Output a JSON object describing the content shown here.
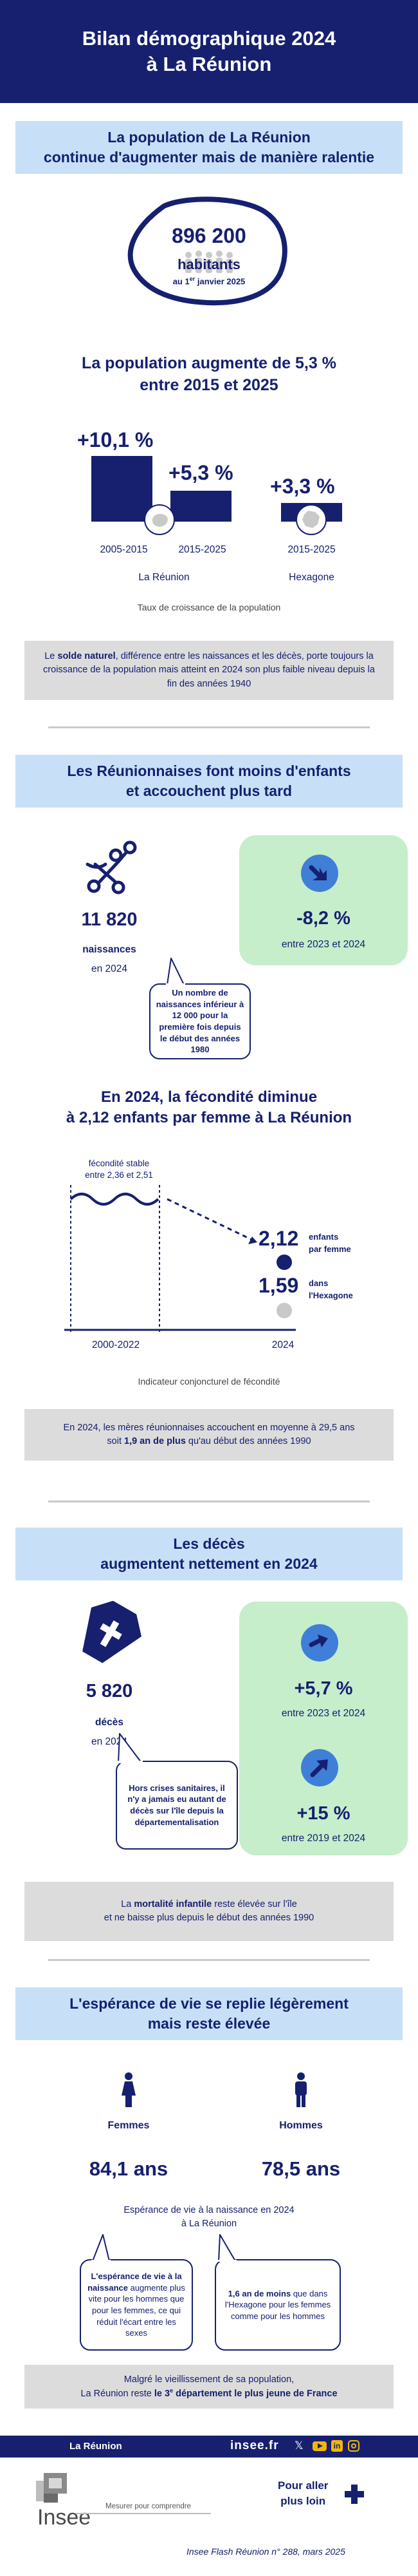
{
  "header": {
    "line1": "Bilan démographique 2024",
    "line2": "à La Réunion"
  },
  "s1": {
    "band_line1": "La population de La Réunion",
    "band_line2": "continue d'augmenter mais de manière ralentie",
    "pop_number": "896 200",
    "pop_word": "habitants",
    "pop_date_prefix": "au 1",
    "pop_date_sup": "er",
    "pop_date_suffix": " janvier 2025",
    "title_line1": "La population augmente de 5,3 %",
    "title_line2": "entre 2015 et 2025",
    "bars": [
      {
        "value_label": "+10,1 %",
        "period": "2005-2015",
        "value": 10.1
      },
      {
        "value_label": "+5,3 %",
        "period": "2015-2025",
        "value": 5.3
      },
      {
        "value_label": "+3,3 %",
        "period": "2015-2025",
        "value": 3.3
      }
    ],
    "region_label": "La Réunion",
    "france_label": "Hexagone",
    "caption": "Taux de croissance de la population",
    "note_pre": "Le ",
    "note_bold": "solde naturel",
    "note_post": ", différence entre les naissances et les décès, porte toujours la croissance de la population mais atteint en 2024 son plus faible niveau depuis la fin des années 1940"
  },
  "s2": {
    "band_line1": "Les Réunionnaises font moins d'enfants",
    "band_line2": "et accouchent plus tard",
    "births_number": "11 820",
    "births_label": "naissances",
    "births_year": "en 2024",
    "change_value": "-8,2 %",
    "change_period": "entre 2023 et 2024",
    "bubble_text": "Un nombre de naissances inférieur à 12 000 pour la première fois depuis le début des années 1980",
    "fert_title_line1": "En 2024, la fécondité diminue",
    "fert_title_line2": "à 2,12 enfants par femme à La Réunion",
    "stable_line1": "fécondité stable",
    "stable_line2": "entre 2,36 et 2,51",
    "reunion_value": "2,12",
    "reunion_unit_line1": "enfants",
    "reunion_unit_line2": "par femme",
    "hexagone_value": "1,59",
    "hexagone_unit_line1": "dans",
    "hexagone_unit_line2": "l'Hexagone",
    "period_label": "2000-2022",
    "year_label": "2024",
    "caption": "Indicateur conjoncturel de fécondité",
    "note_line1": "En 2024, les mères réunionnaises accouchent en moyenne à 29,5 ans",
    "note_pre": "soit ",
    "note_bold": "1,9 an de plus",
    "note_post": " qu'au début des années 1990"
  },
  "s3": {
    "band_line1": "Les décès",
    "band_line2": "augmentent nettement en 2024",
    "deaths_number": "5 820",
    "deaths_label": "décès",
    "deaths_year": "en 2024",
    "change1_value": "+5,7 %",
    "change1_period": "entre 2023 et 2024",
    "change2_value": "+15 %",
    "change2_period": "entre 2019 et 2024",
    "bubble_text": "Hors crises sanitaires, il n'y a jamais eu autant de décès sur l'île depuis la départementalisation",
    "note_pre": "La ",
    "note_bold": "mortalité infantile",
    "note_post": " reste élevée sur l'île",
    "note_line2": "et ne baisse plus depuis le début des années 1990"
  },
  "s4": {
    "band_line1": "L'espérance de vie se replie légèrement",
    "band_line2": "mais reste élevée",
    "women_label": "Femmes",
    "men_label": "Hommes",
    "women_value": "84,1 ans",
    "men_value": "78,5 ans",
    "caption_line1": "Espérance de vie à la naissance en 2024",
    "caption_line2": "à La Réunion",
    "bubble1_pre": "L'espérance de vie à la ",
    "bubble1_bold": "naissance",
    "bubble1_post": " augmente plus vite pour les hommes que pour les femmes, ce qui réduit l'écart entre les sexes",
    "bubble2_bold": "1,6 an de moins",
    "bubble2_post": " que dans l'Hexagone pour les femmes comme pour les hommes",
    "note_line1": "Malgré le vieillissement de sa population,",
    "note_pre": "La Réunion reste ",
    "note_bold": "le 3",
    "note_sup": "e",
    "note_bold2": " département le plus jeune de France"
  },
  "footer": {
    "region": "La Réunion",
    "site": "insee.fr",
    "logo": "Insee",
    "tagline": "Mesurer pour comprendre",
    "more_line1": "Pour aller",
    "more_line2": "plus loin",
    "source": "Insee Flash Réunion n° 288, mars 2025"
  },
  "colors": {
    "navy": "#16206f",
    "light_blue": "#c7e0f7",
    "green": "#c6eecb",
    "icon_blue": "#3f7fd7",
    "gray": "#dcdcdc"
  }
}
